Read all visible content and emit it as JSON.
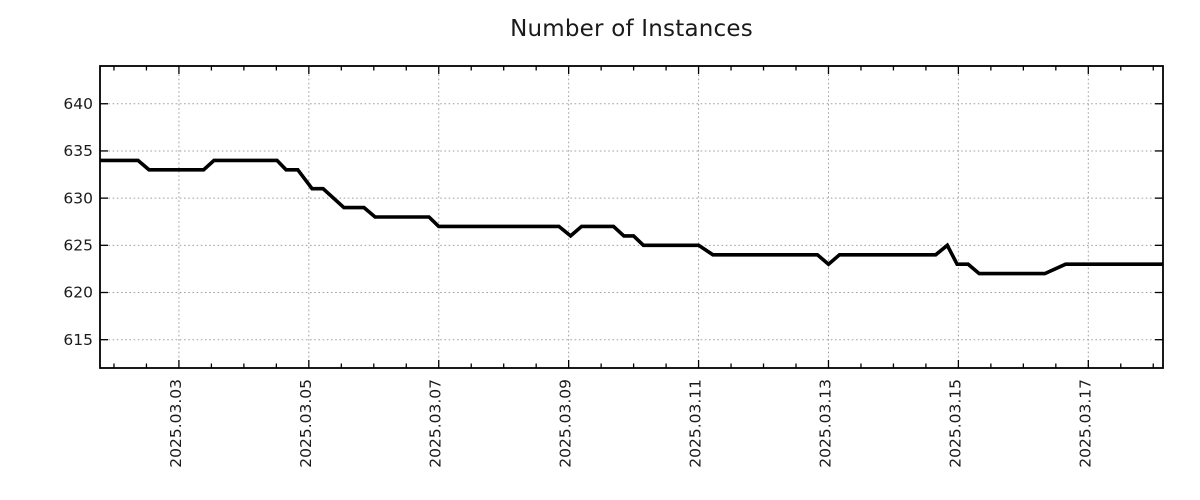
{
  "chart_data": {
    "type": "line",
    "title": "Number of Instances",
    "x_axis": {
      "unit": "date",
      "tick_labels": [
        "2025.03.03",
        "2025.03.05",
        "2025.03.07",
        "2025.03.09",
        "2025.03.11",
        "2025.03.13",
        "2025.03.15",
        "2025.03.17"
      ],
      "tick_days": [
        3,
        5,
        7,
        9,
        11,
        13,
        15,
        17
      ],
      "minor_tick_step_days": 0.5,
      "range_days": [
        1.785,
        18.15
      ]
    },
    "y_axis": {
      "ticks": [
        615,
        620,
        625,
        630,
        635,
        640
      ],
      "range": [
        612,
        644
      ]
    },
    "grid": "dotted",
    "legend": "none",
    "series": [
      {
        "name": "Number of Instances",
        "color": "#000000",
        "points_day_value": [
          [
            1.785,
            634
          ],
          [
            2.37,
            634
          ],
          [
            2.54,
            633
          ],
          [
            3.38,
            633
          ],
          [
            3.54,
            634
          ],
          [
            4.51,
            634
          ],
          [
            4.65,
            633
          ],
          [
            4.83,
            633
          ],
          [
            5.05,
            631
          ],
          [
            5.22,
            631
          ],
          [
            5.54,
            629
          ],
          [
            5.85,
            629
          ],
          [
            6.02,
            628
          ],
          [
            6.85,
            628
          ],
          [
            7.0,
            627
          ],
          [
            8.85,
            627
          ],
          [
            9.03,
            626
          ],
          [
            9.2,
            627
          ],
          [
            9.69,
            627
          ],
          [
            9.85,
            626
          ],
          [
            10.0,
            626
          ],
          [
            10.15,
            625
          ],
          [
            11.0,
            625
          ],
          [
            11.22,
            624
          ],
          [
            12.83,
            624
          ],
          [
            13.0,
            623
          ],
          [
            13.17,
            624
          ],
          [
            14.65,
            624
          ],
          [
            14.83,
            625
          ],
          [
            14.98,
            623
          ],
          [
            15.15,
            623
          ],
          [
            15.32,
            622
          ],
          [
            16.33,
            622
          ],
          [
            16.65,
            623
          ],
          [
            18.15,
            623
          ]
        ]
      }
    ]
  },
  "colors": {
    "background": "#ffffff",
    "line": "#000000",
    "grid": "#a0a0a0",
    "axis": "#000000",
    "text": "#1a1a1a"
  }
}
